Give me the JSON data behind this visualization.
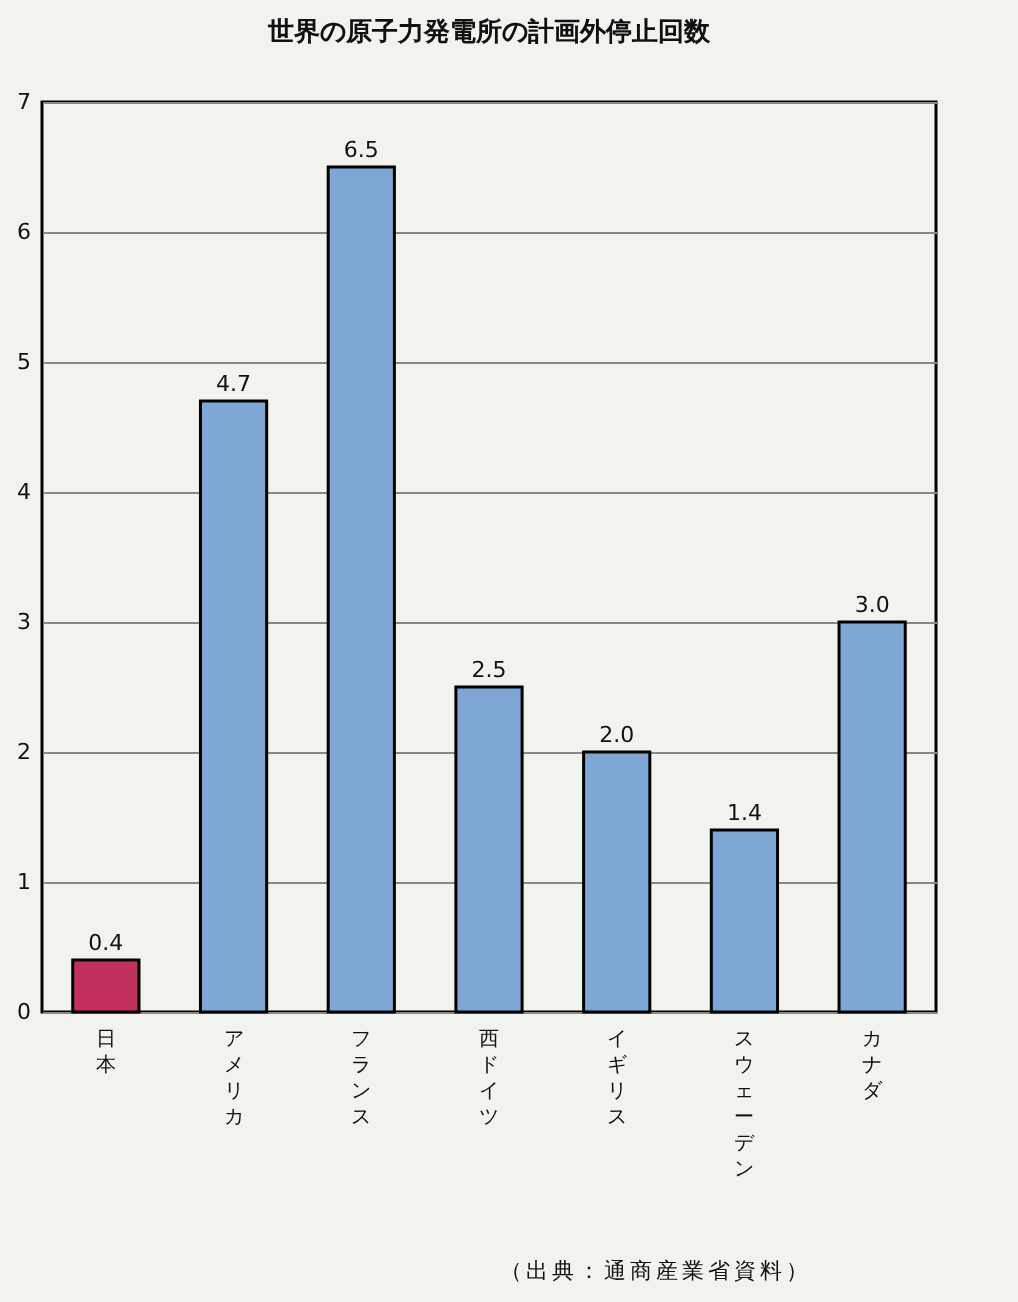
{
  "chart_data": {
    "type": "bar",
    "title": "世界の原子力発電所の計画外停止回数",
    "categories": [
      "日本",
      "アメリカ",
      "フランス",
      "西ドイツ",
      "イギリス",
      "スウェーデン",
      "カナダ"
    ],
    "values": [
      0.4,
      4.7,
      6.5,
      2.5,
      2.0,
      1.4,
      3.0
    ],
    "colors": [
      "#c2305c",
      "#7ea7d6",
      "#7ea7d6",
      "#7ea7d6",
      "#7ea7d6",
      "#7ea7d6",
      "#7ea7d6"
    ],
    "value_labels": [
      "0.4",
      "4.7",
      "6.5",
      "2.5",
      "2.0",
      "1.4",
      "3.0"
    ],
    "ylim": [
      0,
      7
    ],
    "yticks": [
      0,
      1,
      2,
      3,
      4,
      5,
      6,
      7
    ],
    "grid": "y",
    "annotations": [
      "（出典：通商産業省資料）"
    ]
  }
}
